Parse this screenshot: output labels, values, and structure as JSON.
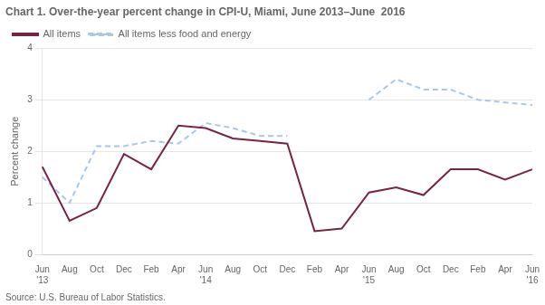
{
  "chart_data": {
    "type": "line",
    "title": "Chart 1. Over-the-year percent change in CPI-U, Miami, June 2013–June  2016",
    "ylabel": "Percent change",
    "source": "Source: U.S. Bureau of Labor Statistics.",
    "categories": [
      "Jun\n'13",
      "Aug",
      "Oct",
      "Dec",
      "Feb",
      "Apr",
      "Jun\n'14",
      "Aug",
      "Oct",
      "Dec",
      "Feb",
      "Apr",
      "Jun\n'15",
      "Aug",
      "Oct",
      "Dec",
      "Feb",
      "Apr",
      "Jun\n'16"
    ],
    "series": [
      {
        "name": "All items",
        "color": "#7b2346",
        "line_style": "solid",
        "values": [
          1.7,
          0.65,
          0.9,
          1.95,
          1.65,
          2.5,
          2.45,
          2.25,
          2.2,
          2.15,
          0.45,
          0.5,
          1.2,
          1.3,
          1.15,
          1.65,
          1.65,
          1.45,
          1.65
        ]
      },
      {
        "name": "All items less food and energy",
        "color": "#a8c8e8",
        "line_style": "dashed",
        "values": [
          1.5,
          1.0,
          2.1,
          2.1,
          2.2,
          2.15,
          2.55,
          2.45,
          2.3,
          2.3,
          null,
          null,
          3.0,
          3.4,
          3.2,
          3.2,
          3.0,
          2.95,
          2.9
        ]
      }
    ],
    "ylim": [
      0,
      4
    ],
    "yticks": [
      0,
      1,
      2,
      3,
      4
    ],
    "grid": true,
    "legend": "upper left"
  }
}
